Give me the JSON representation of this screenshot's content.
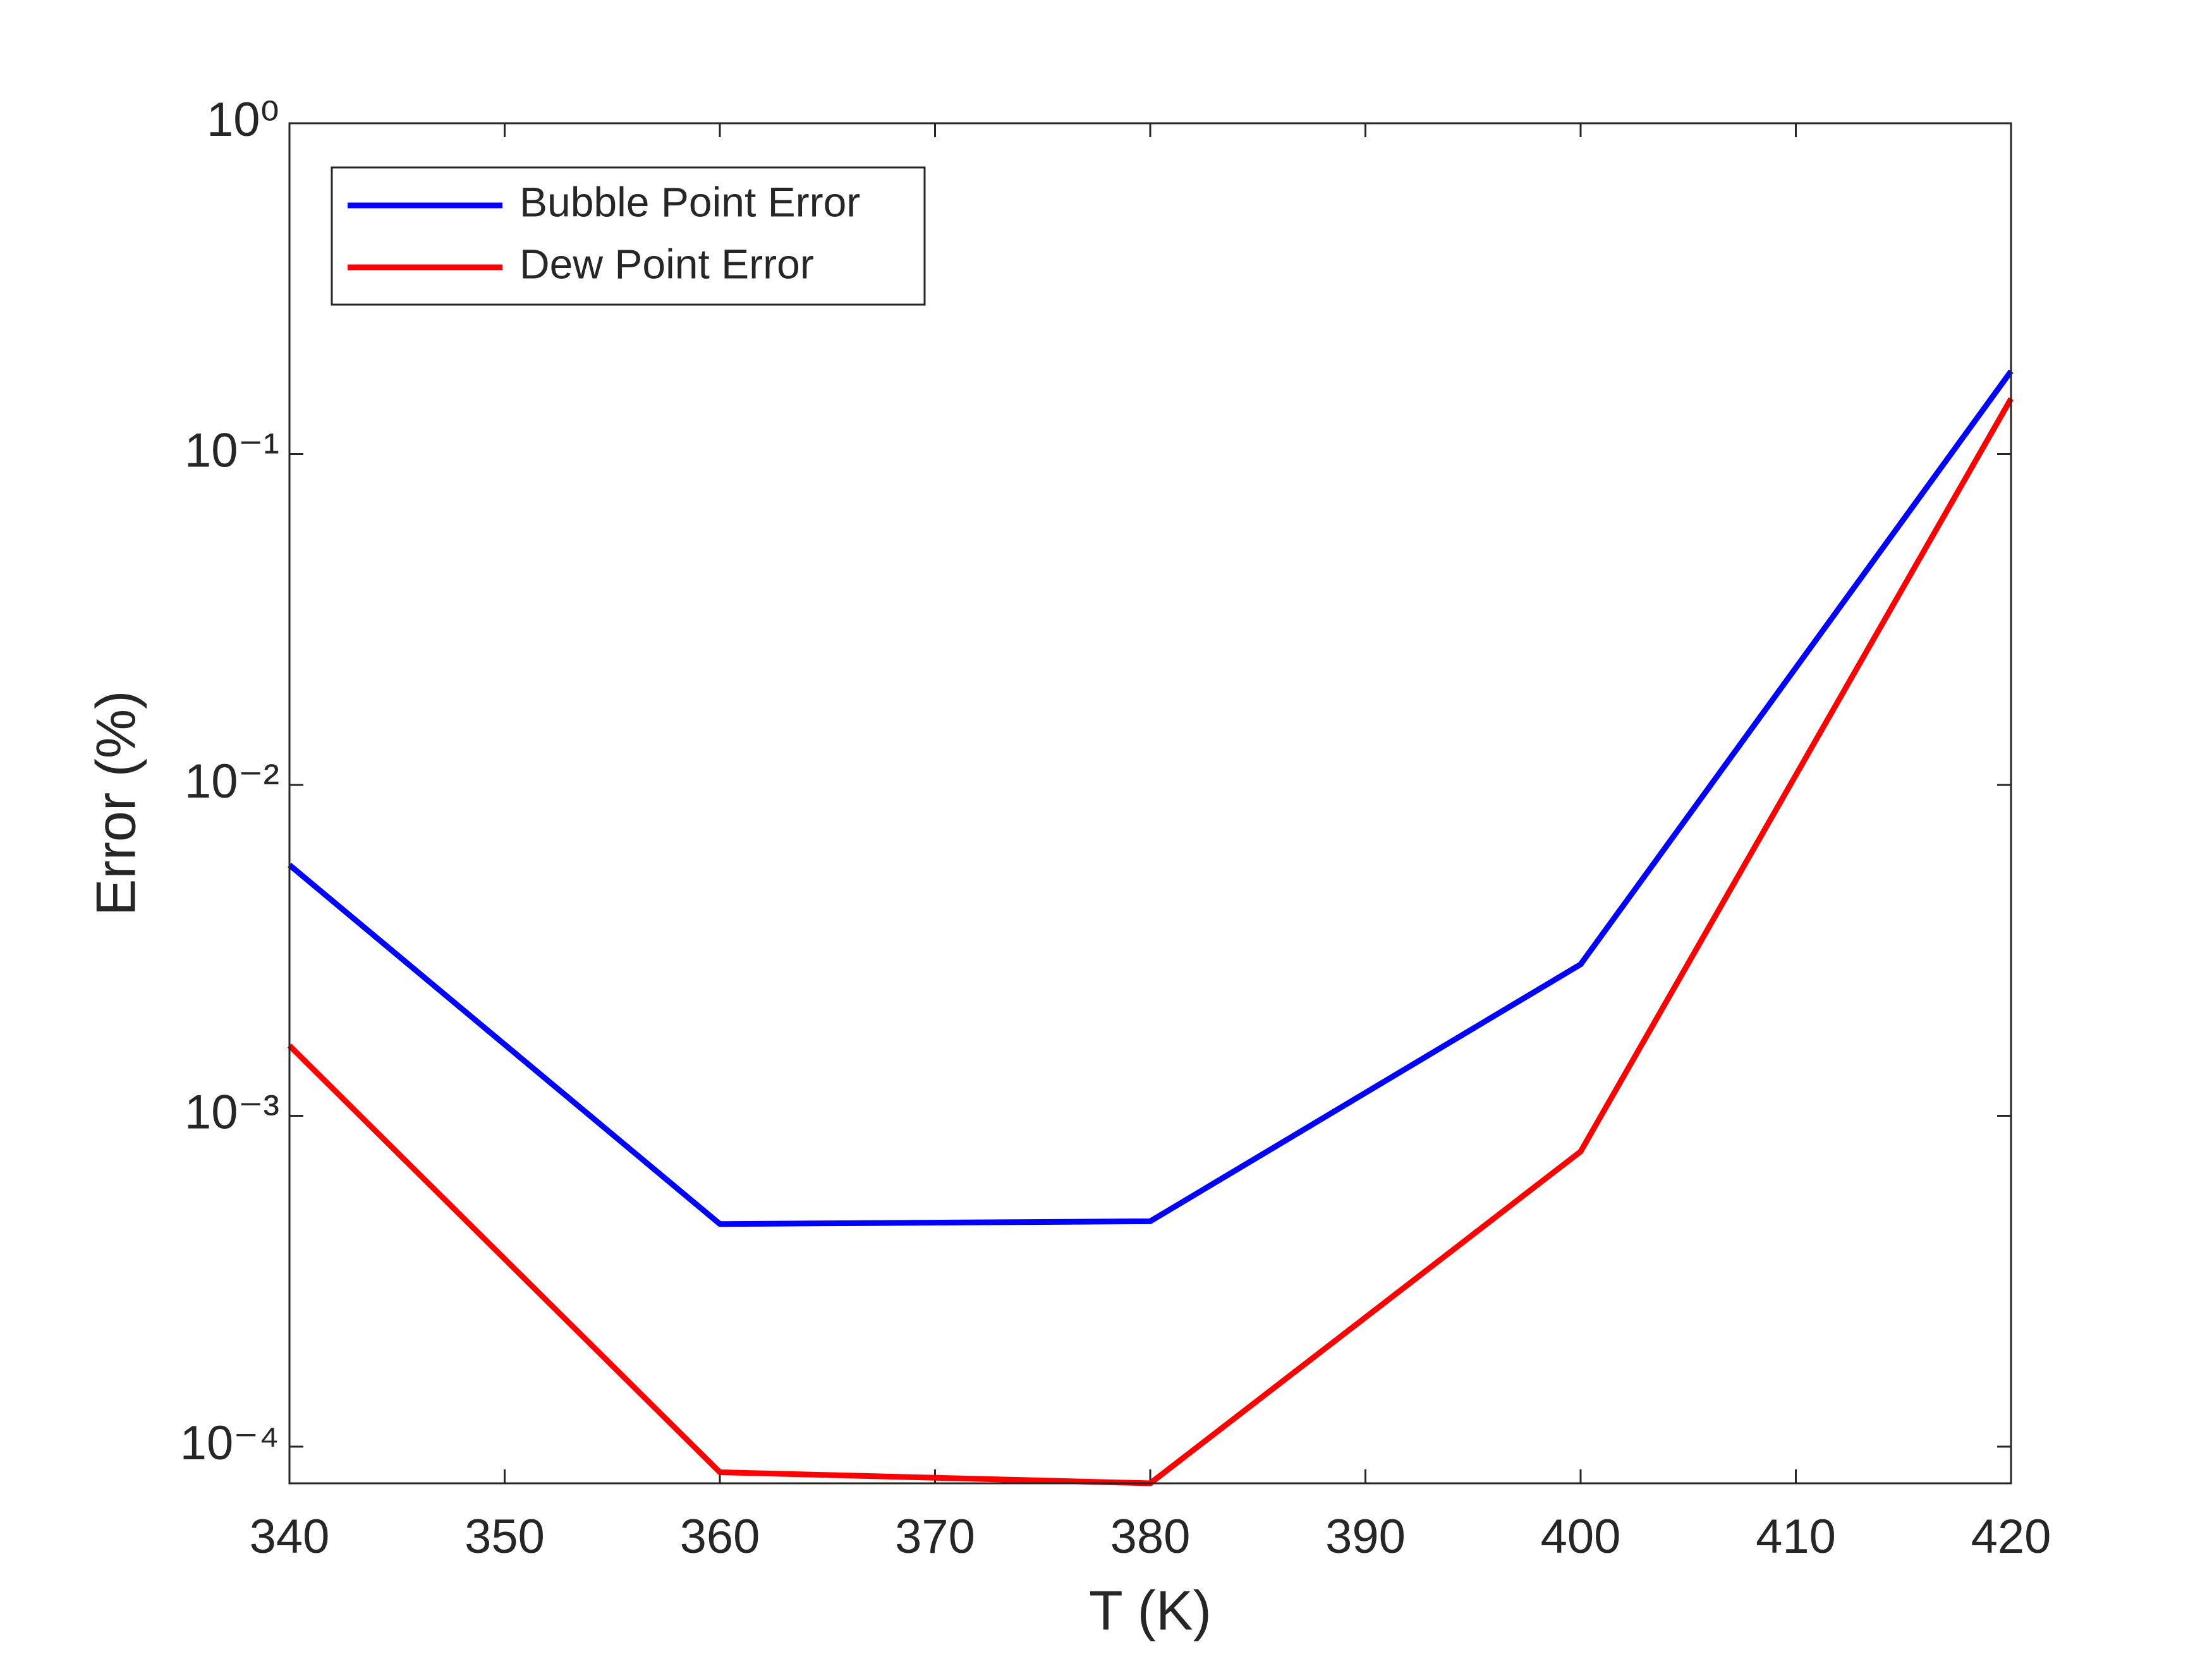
{
  "chart_data": {
    "type": "line",
    "x_label": "T (K)",
    "y_label": "Error (%)",
    "x": [
      340,
      360,
      380,
      400,
      420
    ],
    "series": [
      {
        "name": "Bubble Point Error",
        "color": "#0000ff",
        "values": [
          0.00573,
          0.000471,
          0.00048,
          0.00287,
          0.178
        ]
      },
      {
        "name": "Dew Point Error",
        "color": "#ff0000",
        "values": [
          0.00163,
          8.37e-05,
          7.75e-05,
          0.00078,
          0.147
        ]
      }
    ],
    "xlim": [
      340,
      420
    ],
    "xticks": [
      340,
      350,
      360,
      370,
      380,
      390,
      400,
      410,
      420
    ],
    "ylim": [
      7.75e-05,
      1
    ],
    "yticks": [
      {
        "value": 0.0001,
        "label": "10⁻⁴"
      },
      {
        "value": 0.001,
        "label": "10⁻³"
      },
      {
        "value": 0.01,
        "label": "10⁻²"
      },
      {
        "value": 0.1,
        "label": "10⁻¹"
      },
      {
        "value": 1,
        "label": "10⁰"
      }
    ],
    "y_scale": "log",
    "grid": false,
    "legend_position": "upper left"
  }
}
